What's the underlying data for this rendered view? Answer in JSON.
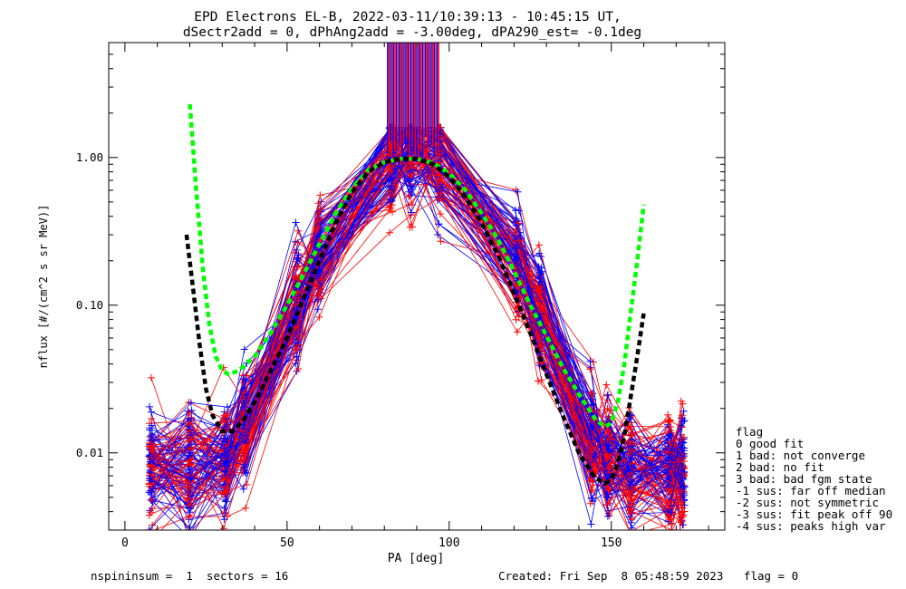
{
  "title_line1": "EPD Electrons EL-B, 2022-03-11/10:39:13 - 10:45:15 UT,",
  "title_line2": "dSectr2add = 0, dPhAng2add = -3.00deg, dPA290_est=  -0.1deg",
  "footer": {
    "left": "nspininsum =  1  sectors = 16",
    "right": "Created: Fri Sep  8 05:48:59 2023   flag = 0"
  },
  "legend": {
    "title": "flag",
    "items": [
      " 0 good fit",
      " 1 bad: not converge",
      " 2 bad: no fit",
      " 3 bad: bad fgm state",
      "-1 sus: far off median",
      "-2 sus: not symmetric",
      "-3 sus: fit peak off 90",
      "-4 sus: peaks high var"
    ]
  },
  "colors": {
    "red_series": "#ff0000",
    "blue_series": "#0000ff",
    "green_fit": "#00ff00",
    "black_fit": "#000000"
  },
  "chart_data": {
    "type": "line",
    "xlabel": "PA [deg]",
    "ylabel": "nflux [#/(cm^2 s sr MeV)]",
    "xlim": [
      -5,
      185
    ],
    "ylim": [
      0.003,
      6
    ],
    "yscale": "log",
    "xticks": [
      0,
      50,
      100,
      150
    ],
    "yticks": [
      0.01,
      0.1,
      1.0
    ],
    "ytick_labels": [
      "0.01",
      "0.10",
      "1.00"
    ],
    "legend_position": "right, outside plot",
    "sampled_pa_deg": [
      8,
      20,
      31,
      37,
      53,
      60,
      82,
      88,
      97,
      121,
      128,
      144,
      149,
      156,
      168,
      172
    ],
    "green_fit": {
      "x": [
        20,
        22,
        24,
        26,
        28,
        30,
        32,
        35,
        40,
        45,
        50,
        55,
        60,
        65,
        70,
        75,
        80,
        85,
        90,
        95,
        100,
        105,
        110,
        115,
        120,
        125,
        130,
        135,
        140,
        145,
        148,
        150,
        152,
        154,
        156,
        158,
        160
      ],
      "y": [
        2.3,
        0.6,
        0.18,
        0.075,
        0.045,
        0.036,
        0.034,
        0.036,
        0.045,
        0.065,
        0.1,
        0.16,
        0.26,
        0.42,
        0.62,
        0.82,
        0.93,
        0.98,
        0.98,
        0.92,
        0.78,
        0.6,
        0.42,
        0.28,
        0.17,
        0.1,
        0.062,
        0.038,
        0.025,
        0.017,
        0.015,
        0.016,
        0.022,
        0.04,
        0.09,
        0.2,
        0.48
      ]
    },
    "black_fit": {
      "x": [
        19,
        21,
        23,
        25,
        27,
        30,
        33,
        36,
        40,
        45,
        50,
        55,
        60,
        65,
        70,
        75,
        80,
        85,
        90,
        95,
        100,
        105,
        110,
        115,
        120,
        125,
        130,
        135,
        140,
        145,
        148,
        150,
        152,
        154,
        156,
        158,
        160
      ],
      "y": [
        0.3,
        0.13,
        0.055,
        0.027,
        0.018,
        0.014,
        0.014,
        0.016,
        0.022,
        0.036,
        0.06,
        0.11,
        0.2,
        0.36,
        0.58,
        0.8,
        0.93,
        0.98,
        0.98,
        0.9,
        0.74,
        0.54,
        0.36,
        0.22,
        0.12,
        0.065,
        0.034,
        0.018,
        0.01,
        0.0068,
        0.0062,
        0.0066,
        0.0085,
        0.013,
        0.024,
        0.045,
        0.088
      ]
    },
    "red_series_spin_count": 60,
    "blue_series_spin_count": 60
  }
}
